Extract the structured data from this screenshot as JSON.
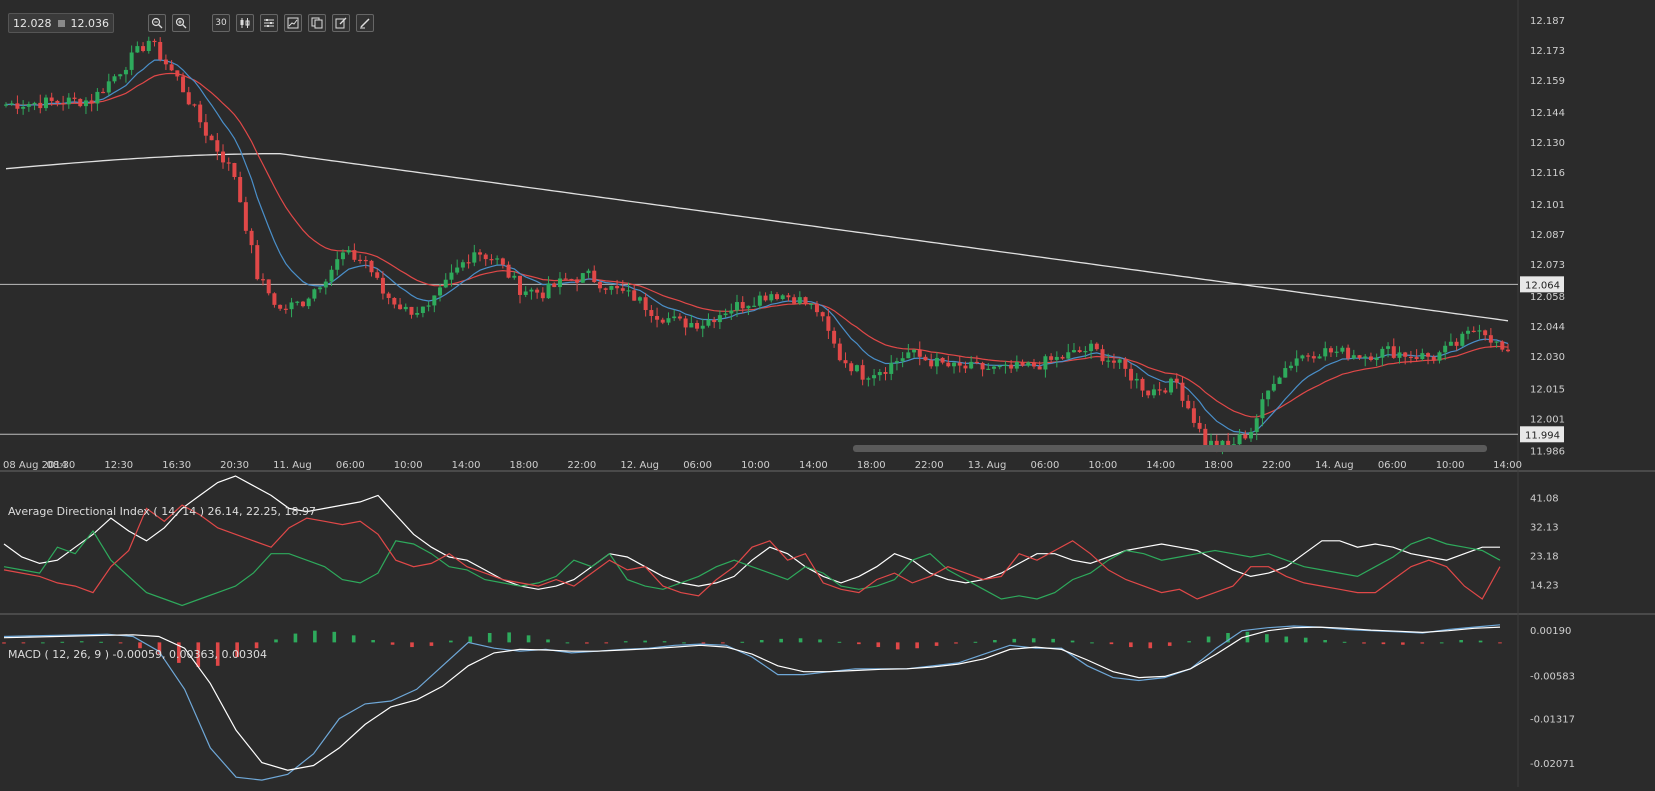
{
  "toolbar": {
    "bid": "12.028",
    "ask": "12.036",
    "buttons": [
      {
        "name": "zoom-out-button",
        "icon": "zoom-out-icon"
      },
      {
        "name": "zoom-in-button",
        "icon": "zoom-in-icon"
      },
      {
        "name": "timeframe-button",
        "label": "30"
      },
      {
        "name": "indicators-button",
        "icon": "candles-icon"
      },
      {
        "name": "settings-button",
        "icon": "sliders-icon"
      },
      {
        "name": "chart-type-button",
        "icon": "line-chart-icon"
      },
      {
        "name": "copy-button",
        "icon": "copy-icon"
      },
      {
        "name": "edit-button",
        "icon": "edit-icon"
      },
      {
        "name": "draw-button",
        "icon": "pen-icon"
      }
    ]
  },
  "colors": {
    "background": "#2b2b2b",
    "up": "#2eaa5c",
    "down": "#e04848",
    "ma_fast": "#4a8fc9",
    "ma_mid": "#e04848",
    "ma_slow": "#e0e0e0",
    "adx": "#ffffff",
    "di_plus": "#2eaa5c",
    "di_minus": "#e04848"
  },
  "chart_data": [
    {
      "type": "candlestick",
      "y_ticks": [
        "12.187",
        "12.173",
        "12.159",
        "12.144",
        "12.130",
        "12.116",
        "12.101",
        "12.087",
        "12.073",
        "12.058",
        "12.044",
        "12.030",
        "12.015",
        "12.001",
        "11.986"
      ],
      "ylim": [
        11.982,
        12.193
      ],
      "x_ticks": [
        "08 Aug 2014",
        "08:30",
        "12:30",
        "16:30",
        "20:30",
        "11. Aug",
        "06:00",
        "10:00",
        "14:00",
        "18:00",
        "22:00",
        "12. Aug",
        "06:00",
        "10:00",
        "14:00",
        "18:00",
        "22:00",
        "13. Aug",
        "06:00",
        "10:00",
        "14:00",
        "18:00",
        "22:00",
        "14. Aug",
        "06:00",
        "10:00",
        "14:00"
      ],
      "horizontal_levels": [
        {
          "value": 12.064,
          "label": "12.064"
        },
        {
          "value": 11.994,
          "label": "11.994"
        }
      ],
      "anchors": [
        [
          0,
          12.148
        ],
        [
          15,
          12.15
        ],
        [
          25,
          12.178
        ],
        [
          30,
          12.16
        ],
        [
          35,
          12.135
        ],
        [
          40,
          12.115
        ],
        [
          44,
          12.068
        ],
        [
          48,
          12.052
        ],
        [
          52,
          12.056
        ],
        [
          56,
          12.068
        ],
        [
          59,
          12.078
        ],
        [
          63,
          12.075
        ],
        [
          66,
          12.06
        ],
        [
          70,
          12.052
        ],
        [
          74,
          12.052
        ],
        [
          78,
          12.068
        ],
        [
          82,
          12.08
        ],
        [
          86,
          12.075
        ],
        [
          90,
          12.062
        ],
        [
          94,
          12.06
        ],
        [
          98,
          12.066
        ],
        [
          102,
          12.068
        ],
        [
          106,
          12.062
        ],
        [
          110,
          12.058
        ],
        [
          114,
          12.05
        ],
        [
          118,
          12.046
        ],
        [
          122,
          12.046
        ],
        [
          126,
          12.052
        ],
        [
          130,
          12.056
        ],
        [
          134,
          12.06
        ],
        [
          138,
          12.058
        ],
        [
          142,
          12.052
        ],
        [
          146,
          12.03
        ],
        [
          150,
          12.022
        ],
        [
          154,
          12.025
        ],
        [
          158,
          12.032
        ],
        [
          162,
          12.028
        ],
        [
          166,
          12.025
        ],
        [
          170,
          12.025
        ],
        [
          175,
          12.024
        ],
        [
          180,
          12.026
        ],
        [
          185,
          12.03
        ],
        [
          190,
          12.034
        ],
        [
          195,
          12.026
        ],
        [
          200,
          12.014
        ],
        [
          205,
          12.018
        ],
        [
          210,
          11.99
        ],
        [
          214,
          11.988
        ],
        [
          218,
          11.996
        ],
        [
          222,
          12.02
        ],
        [
          226,
          12.03
        ],
        [
          230,
          12.033
        ],
        [
          234,
          12.032
        ],
        [
          238,
          12.031
        ],
        [
          242,
          12.033
        ],
        [
          246,
          12.031
        ],
        [
          250,
          12.03
        ],
        [
          254,
          12.036
        ],
        [
          258,
          12.045
        ],
        [
          261,
          12.036
        ],
        [
          263,
          12.03
        ]
      ],
      "series": [
        {
          "name": "fast moving average"
        },
        {
          "name": "slow moving average"
        },
        {
          "name": "200 moving average",
          "start": 12.118,
          "peak": 12.125,
          "end": 12.047
        }
      ]
    },
    {
      "type": "line",
      "title": "Average Directional Index ( 14, 14 ) 26.14, 22.25, 18.97",
      "y_ticks": [
        "41.08",
        "32.13",
        "23.18",
        "14.23"
      ],
      "ylim": [
        6,
        48
      ],
      "series": [
        {
          "name": "ADX",
          "values": [
            27,
            23,
            21,
            22,
            26,
            30,
            35,
            31,
            28,
            32,
            38,
            42,
            46,
            48,
            45,
            42,
            38,
            37,
            38,
            39,
            40,
            42,
            36,
            30,
            26,
            23,
            22,
            19,
            16,
            14,
            13,
            14,
            16,
            20,
            24,
            23,
            20,
            17,
            15,
            14,
            15,
            17,
            22,
            26,
            24,
            20,
            17,
            15,
            17,
            20,
            24,
            22,
            18,
            16,
            15,
            16,
            18,
            21,
            24,
            24,
            22,
            21,
            23,
            25,
            26,
            27,
            26,
            25,
            22,
            19,
            17,
            18,
            20,
            24,
            28,
            28,
            26,
            27,
            26,
            24,
            23,
            22,
            24,
            26,
            26
          ]
        },
        {
          "name": "DI+",
          "values": [
            20,
            19,
            18,
            26,
            24,
            31,
            22,
            17,
            12,
            10,
            8,
            10,
            12,
            14,
            18,
            24,
            24,
            22,
            20,
            16,
            15,
            18,
            28,
            27,
            24,
            20,
            19,
            16,
            15,
            14,
            15,
            17,
            22,
            20,
            24,
            16,
            14,
            13,
            15,
            17,
            20,
            22,
            20,
            18,
            16,
            20,
            18,
            14,
            13,
            14,
            16,
            22,
            24,
            19,
            16,
            13,
            10,
            11,
            10,
            12,
            16,
            18,
            22,
            25,
            24,
            22,
            23,
            24,
            25,
            24,
            23,
            24,
            22,
            20,
            19,
            18,
            17,
            20,
            23,
            27,
            29,
            27,
            26,
            25,
            22
          ]
        },
        {
          "name": "DI-",
          "values": [
            19,
            18,
            17,
            15,
            14,
            12,
            20,
            25,
            38,
            34,
            39,
            36,
            32,
            30,
            28,
            26,
            32,
            35,
            34,
            33,
            34,
            30,
            22,
            20,
            21,
            24,
            20,
            18,
            16,
            15,
            14,
            16,
            14,
            18,
            22,
            19,
            20,
            14,
            12,
            11,
            16,
            20,
            26,
            28,
            22,
            24,
            15,
            13,
            12,
            16,
            18,
            15,
            17,
            20,
            18,
            16,
            17,
            24,
            22,
            25,
            28,
            24,
            19,
            16,
            14,
            12,
            13,
            10,
            12,
            14,
            20,
            20,
            17,
            15,
            14,
            13,
            12,
            12,
            16,
            20,
            22,
            20,
            14,
            10,
            20
          ]
        }
      ]
    },
    {
      "type": "bar",
      "title": "MACD ( 12, 26, 9 ) -0.00059, 0.00363, 0.00304",
      "y_ticks": [
        "0.00190",
        "-0.00583",
        "-0.01317",
        "-0.02071"
      ],
      "ylim": [
        -0.0245,
        0.0045
      ],
      "series": [
        {
          "name": "histogram",
          "values": [
            -0.0002,
            -0.0001,
            0.0,
            0.0001,
            0.0002,
            0.0001,
            -0.0001,
            -0.001,
            -0.002,
            -0.0035,
            -0.0042,
            -0.004,
            -0.0025,
            -0.001,
            0.0005,
            0.0015,
            0.002,
            0.0018,
            0.0012,
            0.0004,
            -0.0004,
            -0.0008,
            -0.0006,
            0.0003,
            0.001,
            0.0016,
            0.0017,
            0.0012,
            0.0005,
            0.0,
            -0.0002,
            -0.0001,
            0.0002,
            0.0003,
            0.0002,
            0.0,
            -0.0002,
            -0.0001,
            0.0001,
            0.0004,
            0.0006,
            0.0007,
            0.0005,
            0.0001,
            -0.0003,
            -0.0008,
            -0.0012,
            -0.001,
            -0.0006,
            -0.0002,
            0.0001,
            0.0004,
            0.0006,
            0.0007,
            0.0006,
            0.0003,
            0.0,
            -0.0003,
            -0.0008,
            -0.001,
            -0.0006,
            0.0002,
            0.001,
            0.0016,
            0.0018,
            0.0014,
            0.001,
            0.0008,
            0.0004,
            0.0001,
            -0.0002,
            -0.0003,
            -0.0004,
            -0.0002,
            0.0,
            0.0004,
            0.0003,
            -0.0001
          ]
        },
        {
          "name": "MACD",
          "values": [
            0.001,
            0.0011,
            0.0012,
            0.0013,
            0.0014,
            0.001,
            -0.0015,
            -0.008,
            -0.018,
            -0.023,
            -0.0235,
            -0.0225,
            -0.019,
            -0.013,
            -0.0105,
            -0.01,
            -0.008,
            -0.004,
            0.0,
            -0.001,
            -0.0015,
            -0.0012,
            -0.0018,
            -0.0015,
            -0.0012,
            -0.001,
            -0.0005,
            -0.0003,
            -0.0005,
            -0.0025,
            -0.0055,
            -0.0055,
            -0.005,
            -0.0045,
            -0.0045,
            -0.0045,
            -0.004,
            -0.0035,
            -0.002,
            -0.0005,
            -0.001,
            -0.001,
            -0.004,
            -0.006,
            -0.0065,
            -0.006,
            -0.0045,
            -0.001,
            0.002,
            0.0025,
            0.0028,
            0.0026,
            0.0022,
            0.002,
            0.0018,
            0.0016,
            0.0022,
            0.0026,
            0.003
          ]
        },
        {
          "name": "signal",
          "values": [
            0.0008,
            0.0009,
            0.001,
            0.0011,
            0.0012,
            0.0013,
            0.001,
            -0.001,
            -0.007,
            -0.015,
            -0.0205,
            -0.0218,
            -0.021,
            -0.018,
            -0.014,
            -0.011,
            -0.0098,
            -0.0075,
            -0.004,
            -0.0018,
            -0.0012,
            -0.0013,
            -0.0015,
            -0.0015,
            -0.0013,
            -0.0011,
            -0.0008,
            -0.0005,
            -0.0008,
            -0.002,
            -0.004,
            -0.005,
            -0.005,
            -0.0048,
            -0.0046,
            -0.0045,
            -0.0042,
            -0.0037,
            -0.0028,
            -0.0012,
            -0.0008,
            -0.0012,
            -0.003,
            -0.005,
            -0.006,
            -0.0058,
            -0.0045,
            -0.002,
            0.0008,
            0.002,
            0.0025,
            0.0026,
            0.0024,
            0.0021,
            0.0019,
            0.0017,
            0.002,
            0.0024,
            0.0026
          ]
        }
      ]
    }
  ]
}
